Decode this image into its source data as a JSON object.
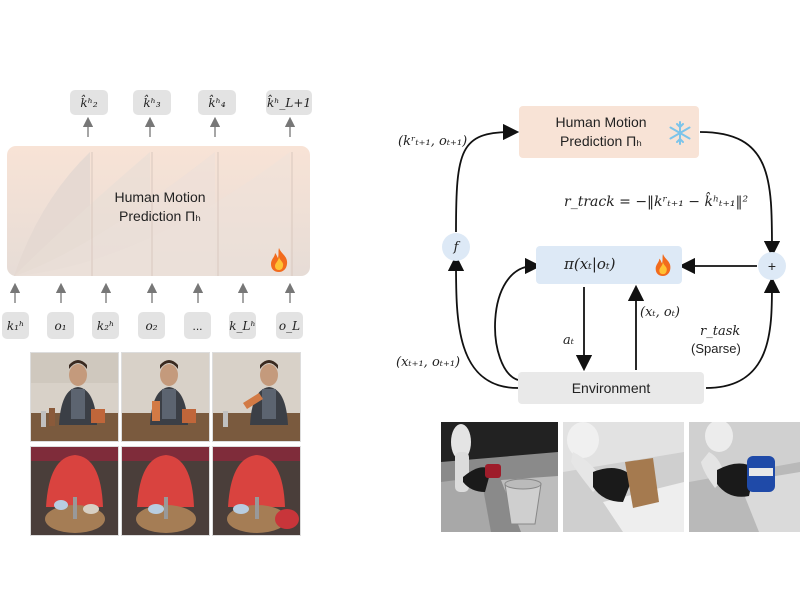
{
  "left": {
    "outputs": [
      "k̂ʰ₂",
      "k̂ʰ₃",
      "k̂ʰ₄",
      "k̂ʰ_L+1"
    ],
    "block_title_line1": "Human Motion",
    "block_title_line2": "Prediction Πₕ",
    "inputs": [
      "k₁ʰ",
      "o₁",
      "k₂ʰ",
      "o₂",
      "...",
      "k_Lʰ",
      "o_L"
    ],
    "block_icon": "fire-icon"
  },
  "right": {
    "predictor_line1": "Human Motion",
    "predictor_line2": "Prediction Πₕ",
    "predictor_icon": "snowflake-icon",
    "policy_label": "π(xₜ|oₜ)",
    "policy_icon": "fire-icon",
    "environment_label": "Environment",
    "f_label": "f",
    "plus_label": "+",
    "top_left_input": "(kʳₜ₊₁, oₜ₊₁)",
    "bottom_left_input": "(xₜ₊₁, oₜ₊₁)",
    "r_track_formula": "r_track = −‖kʳₜ₊₁ − k̂ʰₜ₊₁‖²",
    "action_label": "aₜ",
    "observation_label": "(xₜ, oₜ)",
    "r_task_label": "r_task",
    "r_task_note": "(Sparse)"
  },
  "colors": {
    "block_fill": "#f8e3d6",
    "policy_fill": "#dde9f6",
    "node_fill": "#dde9f6",
    "chip_fill": "#e3e3e3",
    "env_fill": "#e9e9e9"
  }
}
